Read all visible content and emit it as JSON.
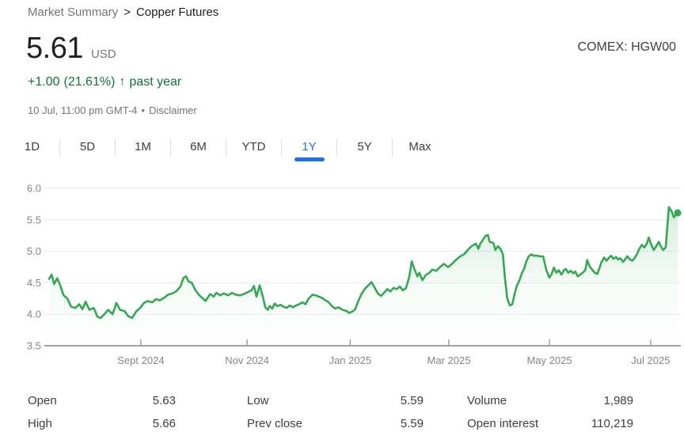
{
  "breadcrumb": {
    "parent": "Market Summary",
    "separator": ">",
    "current": "Copper Futures"
  },
  "quote": {
    "price": "5.61",
    "currency": "USD",
    "change": "+1.00",
    "change_pct": "(21.61%)",
    "arrow": "↑",
    "change_period": "past year",
    "timestamp": "10 Jul, 11:00 pm GMT-4",
    "bullet": "•",
    "disclaimer": "Disclaimer",
    "exchange": "COMEX: HGW00"
  },
  "tabs": {
    "items": [
      {
        "label": "1D",
        "active": false
      },
      {
        "label": "5D",
        "active": false
      },
      {
        "label": "1M",
        "active": false
      },
      {
        "label": "6M",
        "active": false
      },
      {
        "label": "YTD",
        "active": false
      },
      {
        "label": "1Y",
        "active": true
      },
      {
        "label": "5Y",
        "active": false
      },
      {
        "label": "Max",
        "active": false
      }
    ]
  },
  "colors": {
    "accent_blue": "#1a73e8",
    "line_green": "#34a853",
    "change_green": "#137333",
    "axis_gray": "#9aa0a6",
    "grid_gray": "#e8eaed",
    "label_gray": "#80868b"
  },
  "chart_data": {
    "type": "line",
    "title": "Copper Futures price, past year",
    "series_name": "Copper Futures (COMEX: HGW00)",
    "unit": "USD",
    "ylim": [
      3.5,
      6.0
    ],
    "y_ticks": [
      3.5,
      4.0,
      4.5,
      5.0,
      5.5,
      6.0
    ],
    "x_tick_labels": [
      "Sept 2024",
      "Nov 2024",
      "Jan 2025",
      "Mar 2025",
      "May 2025",
      "Jul 2025"
    ],
    "x_tick_pos": [
      0.146,
      0.315,
      0.479,
      0.636,
      0.796,
      0.957
    ],
    "grid": true,
    "legend": "none",
    "line_color": "#34a853",
    "end_value": 5.61,
    "points": [
      [
        0.0,
        4.56
      ],
      [
        0.004,
        4.63
      ],
      [
        0.008,
        4.48
      ],
      [
        0.013,
        4.57
      ],
      [
        0.018,
        4.45
      ],
      [
        0.023,
        4.3
      ],
      [
        0.029,
        4.25
      ],
      [
        0.035,
        4.12
      ],
      [
        0.042,
        4.1
      ],
      [
        0.048,
        4.16
      ],
      [
        0.053,
        4.08
      ],
      [
        0.058,
        4.2
      ],
      [
        0.064,
        4.07
      ],
      [
        0.071,
        4.1
      ],
      [
        0.077,
        3.96
      ],
      [
        0.082,
        3.94
      ],
      [
        0.088,
        4.0
      ],
      [
        0.094,
        4.07
      ],
      [
        0.101,
        4.0
      ],
      [
        0.107,
        4.18
      ],
      [
        0.113,
        4.07
      ],
      [
        0.12,
        4.05
      ],
      [
        0.126,
        3.97
      ],
      [
        0.132,
        3.94
      ],
      [
        0.139,
        4.05
      ],
      [
        0.145,
        4.1
      ],
      [
        0.151,
        4.18
      ],
      [
        0.157,
        4.21
      ],
      [
        0.164,
        4.19
      ],
      [
        0.17,
        4.24
      ],
      [
        0.176,
        4.22
      ],
      [
        0.183,
        4.26
      ],
      [
        0.189,
        4.31
      ],
      [
        0.196,
        4.33
      ],
      [
        0.203,
        4.37
      ],
      [
        0.209,
        4.44
      ],
      [
        0.214,
        4.58
      ],
      [
        0.218,
        4.6
      ],
      [
        0.222,
        4.52
      ],
      [
        0.227,
        4.5
      ],
      [
        0.233,
        4.38
      ],
      [
        0.239,
        4.3
      ],
      [
        0.246,
        4.24
      ],
      [
        0.249,
        4.21
      ],
      [
        0.256,
        4.32
      ],
      [
        0.262,
        4.28
      ],
      [
        0.266,
        4.34
      ],
      [
        0.272,
        4.3
      ],
      [
        0.278,
        4.33
      ],
      [
        0.285,
        4.3
      ],
      [
        0.291,
        4.34
      ],
      [
        0.297,
        4.31
      ],
      [
        0.304,
        4.3
      ],
      [
        0.31,
        4.32
      ],
      [
        0.316,
        4.35
      ],
      [
        0.322,
        4.38
      ],
      [
        0.326,
        4.45
      ],
      [
        0.33,
        4.28
      ],
      [
        0.335,
        4.46
      ],
      [
        0.34,
        4.28
      ],
      [
        0.344,
        4.11
      ],
      [
        0.348,
        4.07
      ],
      [
        0.351,
        4.13
      ],
      [
        0.355,
        4.09
      ],
      [
        0.359,
        4.17
      ],
      [
        0.363,
        4.13
      ],
      [
        0.368,
        4.15
      ],
      [
        0.373,
        4.12
      ],
      [
        0.378,
        4.1
      ],
      [
        0.383,
        4.14
      ],
      [
        0.388,
        4.11
      ],
      [
        0.393,
        4.14
      ],
      [
        0.398,
        4.16
      ],
      [
        0.403,
        4.19
      ],
      [
        0.408,
        4.16
      ],
      [
        0.413,
        4.25
      ],
      [
        0.419,
        4.31
      ],
      [
        0.424,
        4.3
      ],
      [
        0.429,
        4.28
      ],
      [
        0.434,
        4.26
      ],
      [
        0.44,
        4.22
      ],
      [
        0.445,
        4.19
      ],
      [
        0.45,
        4.13
      ],
      [
        0.455,
        4.09
      ],
      [
        0.46,
        4.11
      ],
      [
        0.465,
        4.08
      ],
      [
        0.47,
        4.06
      ],
      [
        0.474,
        4.05
      ],
      [
        0.477,
        4.02
      ],
      [
        0.482,
        4.04
      ],
      [
        0.487,
        4.08
      ],
      [
        0.492,
        4.21
      ],
      [
        0.497,
        4.32
      ],
      [
        0.502,
        4.4
      ],
      [
        0.508,
        4.46
      ],
      [
        0.513,
        4.51
      ],
      [
        0.518,
        4.42
      ],
      [
        0.523,
        4.33
      ],
      [
        0.528,
        4.29
      ],
      [
        0.533,
        4.34
      ],
      [
        0.538,
        4.4
      ],
      [
        0.543,
        4.36
      ],
      [
        0.548,
        4.42
      ],
      [
        0.553,
        4.4
      ],
      [
        0.558,
        4.44
      ],
      [
        0.563,
        4.38
      ],
      [
        0.568,
        4.42
      ],
      [
        0.573,
        4.6
      ],
      [
        0.577,
        4.84
      ],
      [
        0.581,
        4.72
      ],
      [
        0.586,
        4.6
      ],
      [
        0.589,
        4.66
      ],
      [
        0.594,
        4.54
      ],
      [
        0.599,
        4.62
      ],
      [
        0.605,
        4.66
      ],
      [
        0.61,
        4.71
      ],
      [
        0.616,
        4.69
      ],
      [
        0.622,
        4.75
      ],
      [
        0.628,
        4.8
      ],
      [
        0.635,
        4.75
      ],
      [
        0.641,
        4.8
      ],
      [
        0.647,
        4.86
      ],
      [
        0.654,
        4.92
      ],
      [
        0.66,
        4.95
      ],
      [
        0.666,
        5.02
      ],
      [
        0.672,
        5.08
      ],
      [
        0.679,
        5.12
      ],
      [
        0.683,
        5.04
      ],
      [
        0.686,
        5.12
      ],
      [
        0.69,
        5.18
      ],
      [
        0.694,
        5.24
      ],
      [
        0.698,
        5.26
      ],
      [
        0.701,
        5.15
      ],
      [
        0.707,
        5.13
      ],
      [
        0.71,
        5.02
      ],
      [
        0.714,
        5.08
      ],
      [
        0.718,
        5.04
      ],
      [
        0.722,
        4.95
      ],
      [
        0.725,
        4.6
      ],
      [
        0.729,
        4.25
      ],
      [
        0.733,
        4.14
      ],
      [
        0.737,
        4.16
      ],
      [
        0.74,
        4.3
      ],
      [
        0.744,
        4.45
      ],
      [
        0.748,
        4.53
      ],
      [
        0.752,
        4.65
      ],
      [
        0.756,
        4.73
      ],
      [
        0.759,
        4.83
      ],
      [
        0.763,
        4.92
      ],
      [
        0.767,
        4.95
      ],
      [
        0.771,
        4.93
      ],
      [
        0.776,
        4.93
      ],
      [
        0.781,
        4.92
      ],
      [
        0.786,
        4.92
      ],
      [
        0.791,
        4.7
      ],
      [
        0.796,
        4.58
      ],
      [
        0.8,
        4.65
      ],
      [
        0.803,
        4.74
      ],
      [
        0.807,
        4.66
      ],
      [
        0.811,
        4.7
      ],
      [
        0.815,
        4.63
      ],
      [
        0.819,
        4.7
      ],
      [
        0.822,
        4.72
      ],
      [
        0.826,
        4.66
      ],
      [
        0.83,
        4.69
      ],
      [
        0.834,
        4.65
      ],
      [
        0.837,
        4.68
      ],
      [
        0.841,
        4.6
      ],
      [
        0.845,
        4.63
      ],
      [
        0.849,
        4.66
      ],
      [
        0.853,
        4.7
      ],
      [
        0.856,
        4.86
      ],
      [
        0.86,
        4.76
      ],
      [
        0.864,
        4.71
      ],
      [
        0.868,
        4.66
      ],
      [
        0.872,
        4.64
      ],
      [
        0.875,
        4.72
      ],
      [
        0.879,
        4.83
      ],
      [
        0.883,
        4.9
      ],
      [
        0.887,
        4.85
      ],
      [
        0.89,
        4.89
      ],
      [
        0.894,
        4.93
      ],
      [
        0.898,
        4.88
      ],
      [
        0.902,
        4.91
      ],
      [
        0.905,
        4.87
      ],
      [
        0.909,
        4.89
      ],
      [
        0.913,
        4.83
      ],
      [
        0.917,
        4.88
      ],
      [
        0.92,
        4.92
      ],
      [
        0.924,
        4.87
      ],
      [
        0.928,
        4.85
      ],
      [
        0.932,
        4.9
      ],
      [
        0.936,
        4.97
      ],
      [
        0.939,
        5.04
      ],
      [
        0.943,
        5.1
      ],
      [
        0.947,
        5.06
      ],
      [
        0.951,
        5.12
      ],
      [
        0.954,
        5.22
      ],
      [
        0.958,
        5.1
      ],
      [
        0.962,
        5.02
      ],
      [
        0.966,
        5.08
      ],
      [
        0.97,
        5.15
      ],
      [
        0.973,
        5.08
      ],
      [
        0.977,
        5.02
      ],
      [
        0.981,
        5.06
      ],
      [
        0.986,
        5.7
      ],
      [
        0.99,
        5.64
      ],
      [
        0.994,
        5.54
      ],
      [
        1.0,
        5.61
      ]
    ]
  },
  "stats": {
    "columns": [
      [
        {
          "label": "Open",
          "value": "5.63"
        },
        {
          "label": "High",
          "value": "5.66"
        }
      ],
      [
        {
          "label": "Low",
          "value": "5.59"
        },
        {
          "label": "Prev close",
          "value": "5.59"
        }
      ],
      [
        {
          "label": "Volume",
          "value": "1,989"
        },
        {
          "label": "Open interest",
          "value": "110,219"
        }
      ]
    ]
  }
}
